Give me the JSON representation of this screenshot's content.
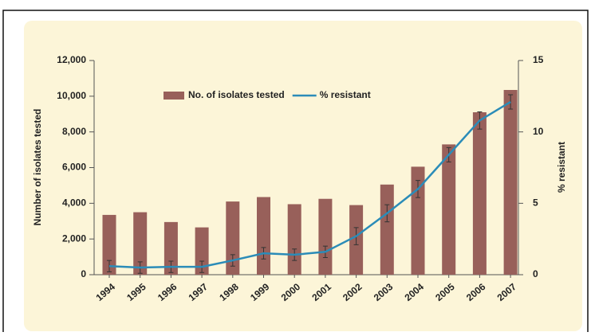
{
  "chart_data": {
    "type": "bar",
    "categories": [
      "1994",
      "1995",
      "1996",
      "1997",
      "1998",
      "1999",
      "2000",
      "2001",
      "2002",
      "2003",
      "2004",
      "2005",
      "2006",
      "2007"
    ],
    "series": [
      {
        "name": "No. of isolates tested",
        "type": "bar",
        "color": "#98605a",
        "values": [
          3350,
          3500,
          2950,
          2650,
          4100,
          4350,
          3950,
          4250,
          3900,
          5050,
          6050,
          7300,
          9100,
          10350
        ]
      },
      {
        "name": "% resistant",
        "type": "line",
        "axis": "y2",
        "color": "#2b8cb8",
        "values": [
          0.6,
          0.5,
          0.55,
          0.55,
          1.0,
          1.5,
          1.4,
          1.6,
          2.7,
          4.3,
          6.0,
          8.4,
          10.8,
          12.1
        ],
        "errors": [
          0.4,
          0.4,
          0.4,
          0.4,
          0.4,
          0.4,
          0.4,
          0.4,
          0.6,
          0.6,
          0.6,
          0.5,
          0.6,
          0.5
        ]
      }
    ],
    "y_label": "Number of isolates tested",
    "y2_label": "% resistant",
    "ylim": [
      0,
      12000
    ],
    "yticks": [
      0,
      {
        "value": 2000,
        "label": "2,000"
      },
      {
        "value": 4000,
        "label": "4,000"
      },
      {
        "value": 6000,
        "label": "6,000"
      },
      {
        "value": 8000,
        "label": "8,000"
      },
      {
        "value": 10000,
        "label": "10,000"
      },
      {
        "value": 12000,
        "label": "12,000"
      }
    ],
    "y2lim": [
      0,
      15
    ],
    "y2ticks": [
      0,
      5,
      10,
      15
    ],
    "grid": false,
    "legend": "top"
  }
}
